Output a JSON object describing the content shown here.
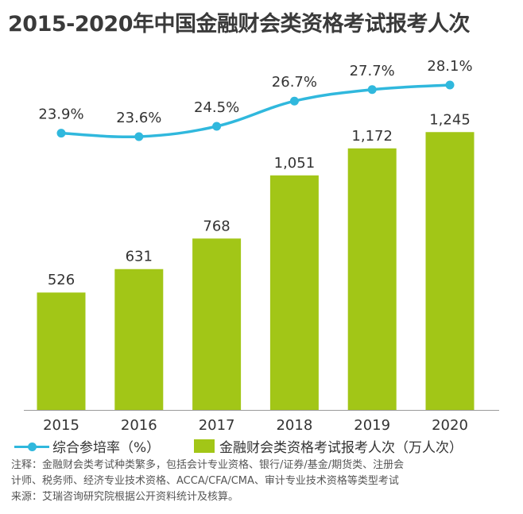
{
  "title": "2015-2020年中国金融财会类资格考试报考人次",
  "colors": {
    "bar": "#a2c617",
    "line": "#30b8dd",
    "text": "#333333"
  },
  "legend": {
    "line_label": "综合参培率（%）",
    "bar_label": "金融财会类资格考试报考人次（万人次）"
  },
  "notes": [
    "注释：金融财会类考试种类繁多，包括会计专业资格、银行/证券/基金/期货类、注册会",
    "计师、税务师、经济专业技术资格、ACCA/CFA/CMA、审计专业技术资格等类型考试",
    "来源：艾瑞咨询研究院根据公开资料统计及核算。"
  ],
  "chart_data": {
    "type": "bar",
    "categories": [
      "2015",
      "2016",
      "2017",
      "2018",
      "2019",
      "2020"
    ],
    "series": [
      {
        "name": "金融财会类资格考试报考人次（万人次）",
        "kind": "bar",
        "values": [
          526,
          631,
          768,
          1051,
          1172,
          1245
        ],
        "labels": [
          "526",
          "631",
          "768",
          "1,051",
          "1,172",
          "1,245"
        ]
      },
      {
        "name": "综合参培率（%）",
        "kind": "line",
        "values": [
          23.9,
          23.6,
          24.5,
          26.7,
          27.7,
          28.1
        ],
        "labels": [
          "23.9%",
          "23.6%",
          "24.5%",
          "26.7%",
          "27.7%",
          "28.1%"
        ]
      }
    ],
    "bar_axis_range": [
      0,
      1310
    ],
    "line_axis_range": [
      23.6,
      28.1
    ],
    "grid": false,
    "legend_position": "bottom-left"
  }
}
